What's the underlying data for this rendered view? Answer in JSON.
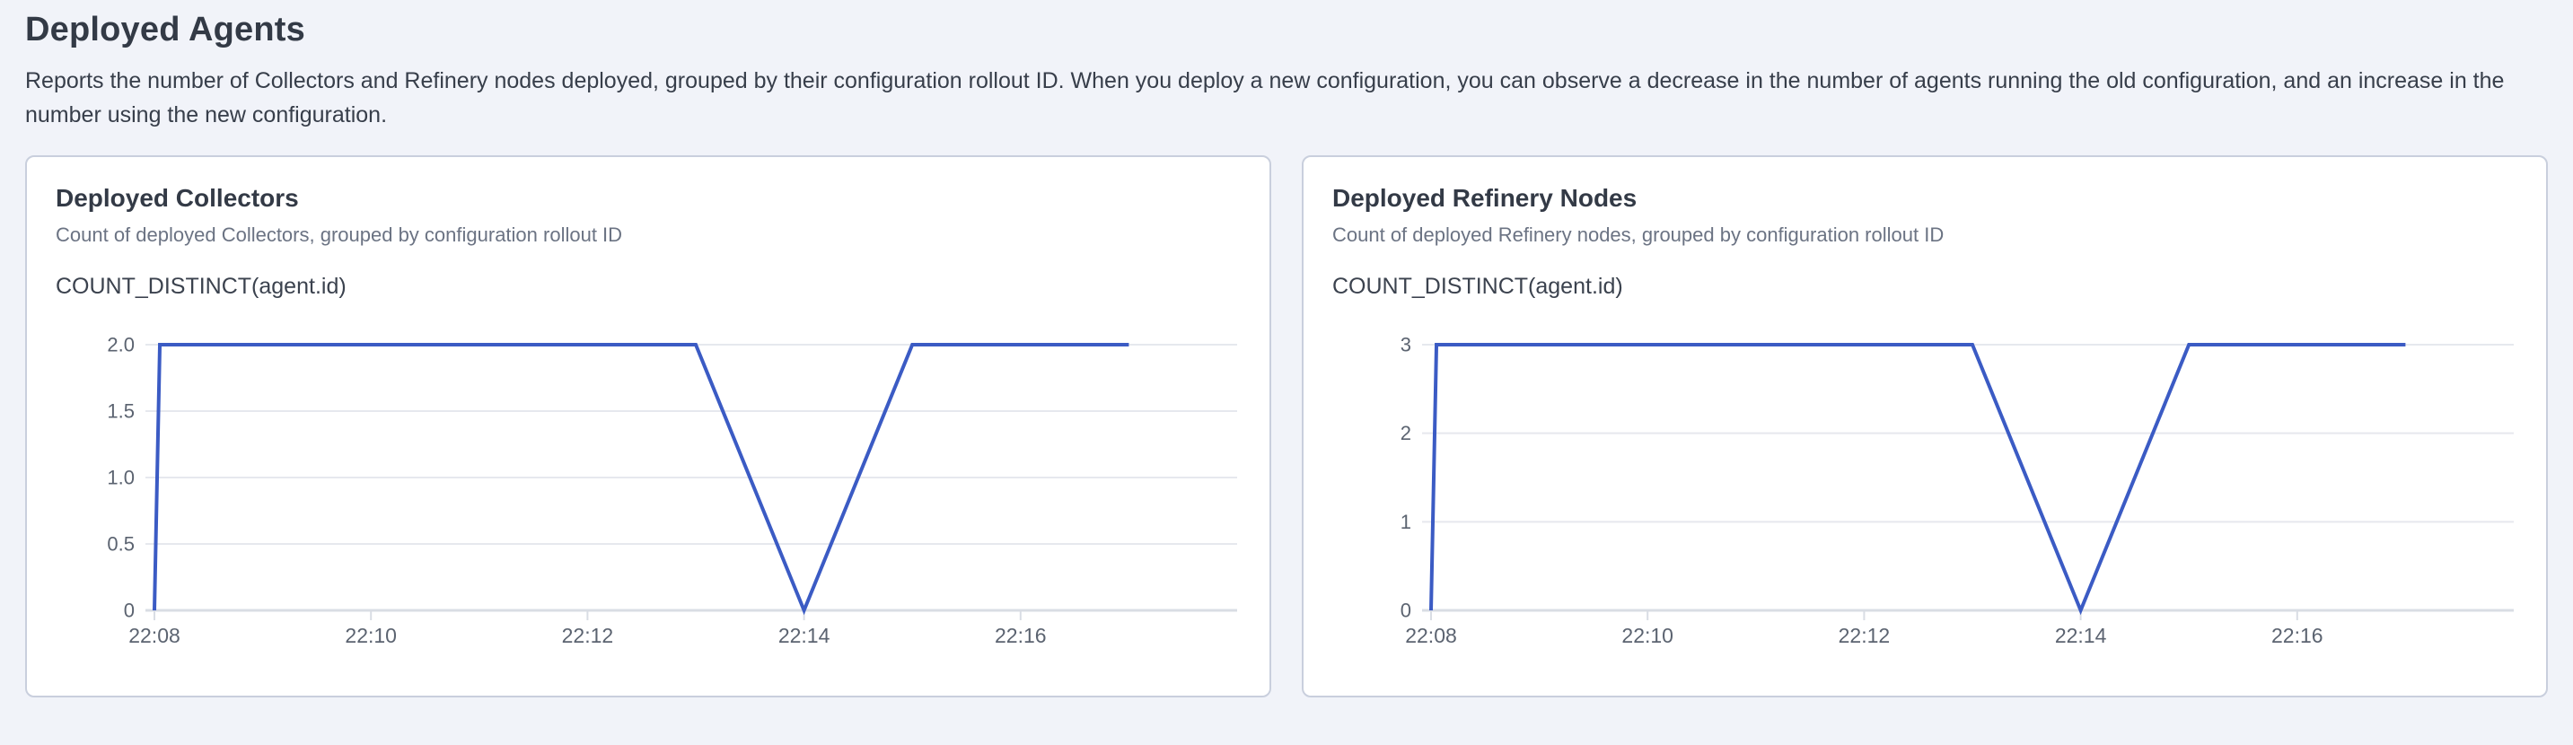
{
  "page": {
    "title": "Deployed Agents",
    "description": "Reports the number of Collectors and Refinery nodes deployed, grouped by their configuration rollout ID. When you deploy a new configuration, you can observe a decrease in the number of agents running the old configuration, and an increase in the number using the new configuration."
  },
  "colors": {
    "page_bg": "#f1f3f9",
    "card_bg": "#ffffff",
    "card_border": "#c9cfdd",
    "heading": "#333a46",
    "body_text": "#373e4a",
    "subtitle_text": "#6b7383",
    "metric_text": "#3b424e",
    "axis_label": "#5b6370",
    "gridline": "#e6e8ee",
    "axis_line": "#d9dde4",
    "series_line": "#3b5bc4"
  },
  "chart_data": [
    {
      "type": "line",
      "title": "Deployed Collectors",
      "subtitle": "Count of deployed Collectors, grouped by configuration rollout ID",
      "metric_label": "COUNT_DISTINCT(agent.id)",
      "grid": true,
      "legend": "none",
      "x_axis": {
        "tick_labels": [
          "22:08",
          "22:10",
          "22:12",
          "22:14",
          "22:16"
        ],
        "tick_minutes": [
          8,
          10,
          12,
          14,
          16
        ],
        "range_minutes": [
          8,
          18
        ]
      },
      "y_axis": {
        "tick_labels": [
          "0",
          "0.5",
          "1.0",
          "1.5",
          "2.0"
        ],
        "tick_values": [
          0,
          0.5,
          1,
          1.5,
          2
        ],
        "range": [
          0,
          2
        ]
      },
      "series": [
        {
          "name": "COUNT_DISTINCT(agent.id)",
          "points": [
            {
              "time": "22:08",
              "minute": 8,
              "value": 0
            },
            {
              "time": "22:08",
              "minute": 8.05,
              "value": 2
            },
            {
              "time": "22:13",
              "minute": 13,
              "value": 2
            },
            {
              "time": "22:14",
              "minute": 14,
              "value": 0
            },
            {
              "time": "22:15",
              "minute": 15,
              "value": 2
            },
            {
              "time": "22:17",
              "minute": 17,
              "value": 2
            }
          ]
        }
      ]
    },
    {
      "type": "line",
      "title": "Deployed Refinery Nodes",
      "subtitle": "Count of deployed Refinery nodes, grouped by configuration rollout ID",
      "metric_label": "COUNT_DISTINCT(agent.id)",
      "grid": true,
      "legend": "none",
      "x_axis": {
        "tick_labels": [
          "22:08",
          "22:10",
          "22:12",
          "22:14",
          "22:16"
        ],
        "tick_minutes": [
          8,
          10,
          12,
          14,
          16
        ],
        "range_minutes": [
          8,
          18
        ]
      },
      "y_axis": {
        "tick_labels": [
          "0",
          "1",
          "2",
          "3"
        ],
        "tick_values": [
          0,
          1,
          2,
          3
        ],
        "range": [
          0,
          3
        ]
      },
      "series": [
        {
          "name": "COUNT_DISTINCT(agent.id)",
          "points": [
            {
              "time": "22:08",
              "minute": 8,
              "value": 0
            },
            {
              "time": "22:08",
              "minute": 8.05,
              "value": 3
            },
            {
              "time": "22:13",
              "minute": 13,
              "value": 3
            },
            {
              "time": "22:14",
              "minute": 14,
              "value": 0
            },
            {
              "time": "22:15",
              "minute": 15,
              "value": 3
            },
            {
              "time": "22:17",
              "minute": 17,
              "value": 3
            }
          ]
        }
      ]
    }
  ]
}
